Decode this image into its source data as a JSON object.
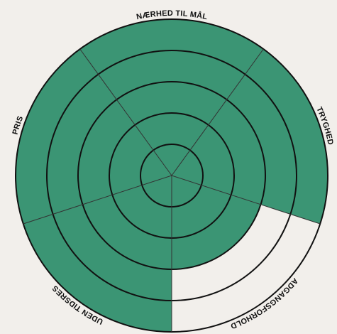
{
  "chart_data": {
    "type": "polar",
    "categories": [
      "NÆRHED TIL MÅL",
      "TRYGHED",
      "ADGANGSFORHOLD",
      "UDEN TIDSRES",
      "PRIS"
    ],
    "values": [
      5,
      5,
      3,
      5,
      5
    ],
    "color": "#3b9574",
    "rlim": [
      0,
      5
    ],
    "rticks": [
      1,
      2,
      3,
      4,
      5
    ],
    "grid": true
  }
}
